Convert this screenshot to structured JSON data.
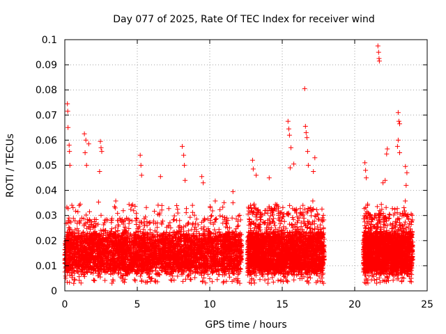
{
  "chart_data": {
    "type": "scatter",
    "title": "Day 077 of 2025, Rate Of TEC Index for receiver wind",
    "xlabel": "GPS time / hours",
    "ylabel": "ROTI / TECUs",
    "xlim": [
      0,
      25
    ],
    "ylim": [
      0,
      0.1
    ],
    "x_ticks": [
      0,
      5,
      10,
      15,
      20,
      25
    ],
    "x_tick_labels": [
      "0",
      "5",
      "10",
      "15",
      "20",
      "25"
    ],
    "y_ticks": [
      0,
      0.01,
      0.02,
      0.03,
      0.04,
      0.05,
      0.06,
      0.07,
      0.08,
      0.09,
      0.1
    ],
    "y_tick_labels": [
      "0",
      "0.01",
      "0.02",
      "0.03",
      "0.04",
      "0.05",
      "0.06",
      "0.07",
      "0.08",
      "0.09",
      "0.1"
    ],
    "grid": true,
    "marker": "+",
    "color": "#ff0000",
    "coverage_segments": [
      {
        "start": 0.0,
        "end": 12.2,
        "base_max": 0.026
      },
      {
        "start": 12.6,
        "end": 17.9,
        "base_max": 0.03
      },
      {
        "start": 20.6,
        "end": 24.0,
        "base_max": 0.028
      }
    ],
    "notable_points": [
      [
        0.18,
        0.0745
      ],
      [
        0.2,
        0.0715
      ],
      [
        0.22,
        0.065
      ],
      [
        0.3,
        0.058
      ],
      [
        0.32,
        0.0555
      ],
      [
        0.35,
        0.05
      ],
      [
        1.35,
        0.0625
      ],
      [
        1.45,
        0.06
      ],
      [
        1.65,
        0.0585
      ],
      [
        1.4,
        0.055
      ],
      [
        1.5,
        0.05
      ],
      [
        2.45,
        0.0595
      ],
      [
        2.5,
        0.057
      ],
      [
        2.55,
        0.0555
      ],
      [
        2.4,
        0.0475
      ],
      [
        5.2,
        0.054
      ],
      [
        5.25,
        0.05
      ],
      [
        5.3,
        0.046
      ],
      [
        6.6,
        0.0455
      ],
      [
        8.1,
        0.0575
      ],
      [
        8.2,
        0.054
      ],
      [
        8.25,
        0.05
      ],
      [
        8.3,
        0.044
      ],
      [
        9.45,
        0.0455
      ],
      [
        9.55,
        0.043
      ],
      [
        11.6,
        0.0395
      ],
      [
        12.95,
        0.052
      ],
      [
        13.0,
        0.0485
      ],
      [
        13.2,
        0.046
      ],
      [
        14.1,
        0.045
      ],
      [
        15.4,
        0.0675
      ],
      [
        15.45,
        0.0645
      ],
      [
        15.5,
        0.062
      ],
      [
        15.6,
        0.057
      ],
      [
        15.55,
        0.049
      ],
      [
        15.8,
        0.0505
      ],
      [
        16.55,
        0.0805
      ],
      [
        16.6,
        0.0655
      ],
      [
        16.65,
        0.063
      ],
      [
        16.7,
        0.061
      ],
      [
        16.75,
        0.0555
      ],
      [
        16.8,
        0.05
      ],
      [
        17.25,
        0.053
      ],
      [
        17.15,
        0.0475
      ],
      [
        21.6,
        0.0975
      ],
      [
        21.65,
        0.095
      ],
      [
        21.7,
        0.0915
      ],
      [
        21.68,
        0.0925
      ],
      [
        20.7,
        0.051
      ],
      [
        20.75,
        0.048
      ],
      [
        20.8,
        0.045
      ],
      [
        21.95,
        0.043
      ],
      [
        22.25,
        0.0565
      ],
      [
        22.2,
        0.0545
      ],
      [
        22.1,
        0.044
      ],
      [
        23.0,
        0.071
      ],
      [
        23.05,
        0.0675
      ],
      [
        23.1,
        0.0665
      ],
      [
        23.0,
        0.06
      ],
      [
        22.95,
        0.0575
      ],
      [
        23.1,
        0.055
      ],
      [
        23.5,
        0.0495
      ],
      [
        23.6,
        0.047
      ],
      [
        23.55,
        0.042
      ]
    ]
  }
}
